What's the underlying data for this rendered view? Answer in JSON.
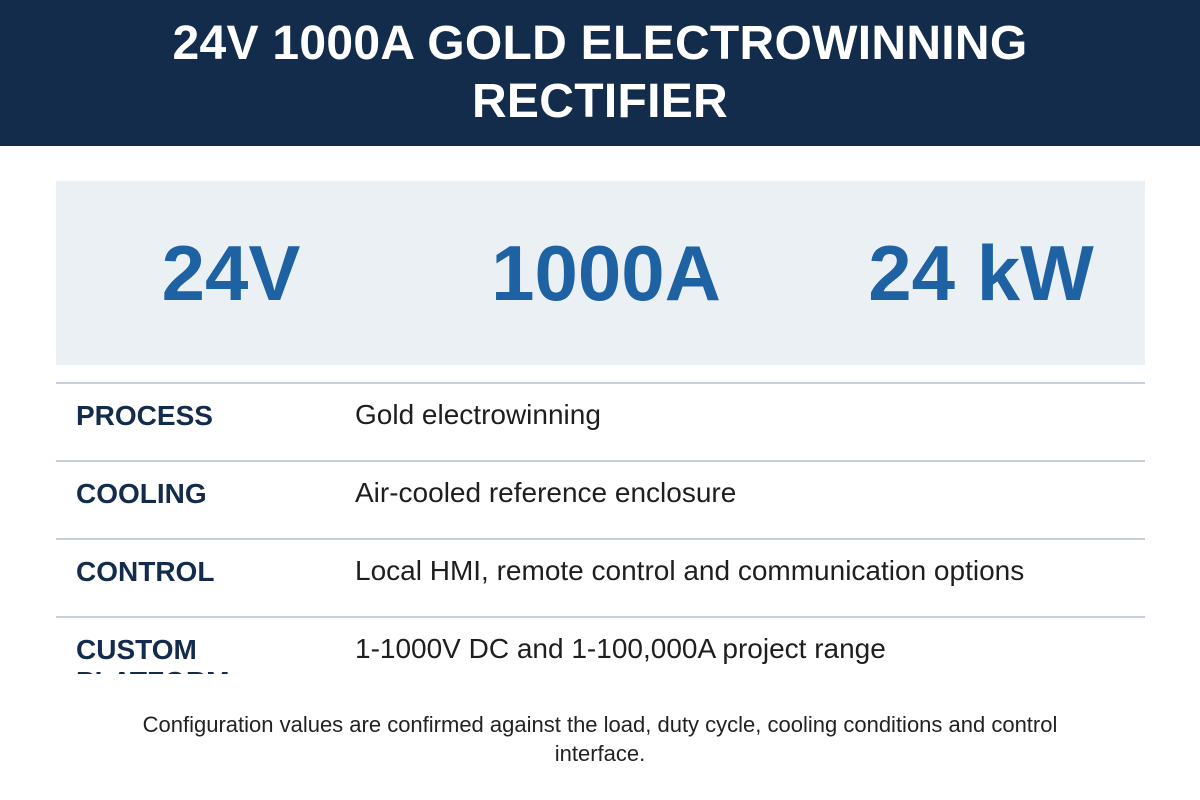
{
  "header": {
    "title": "24V 1000A GOLD ELECTROWINNING RECTIFIER"
  },
  "metrics": [
    {
      "value": "24V"
    },
    {
      "value": "1000A"
    },
    {
      "value": "24 kW"
    }
  ],
  "specs": [
    {
      "label": "PROCESS",
      "value": "Gold electrowinning"
    },
    {
      "label": "COOLING",
      "value": "Air-cooled reference enclosure"
    },
    {
      "label": "CONTROL",
      "value": "Local HMI, remote control and communication options"
    },
    {
      "label": "CUSTOM PLATFORM",
      "value": "1-1000V DC and 1-100,000A project range"
    }
  ],
  "footnote": "Configuration values are confirmed against the load, duty cycle, cooling conditions and control interface.",
  "colors": {
    "header_bg": "#142c4c",
    "metric_text": "#1f62a3",
    "metric_bg": "#ebf0f5",
    "divider": "#c6d0dc"
  }
}
